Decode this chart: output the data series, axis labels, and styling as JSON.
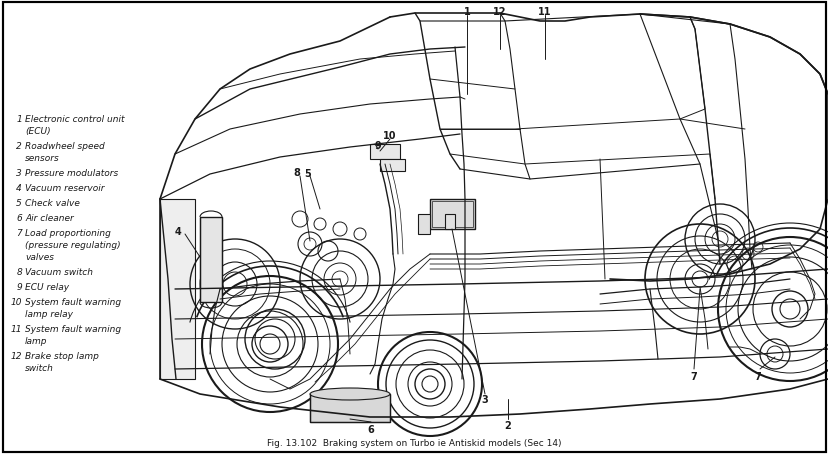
{
  "title": "Fig. 13.102  Braking system on Turbo ie Antiskid models (Sec 14)",
  "background_color": "#ffffff",
  "border_color": "#000000",
  "fig_width": 8.29,
  "fig_height": 4.56,
  "dpi": 100,
  "legend_items": [
    {
      "num": "1",
      "text": "Electronic control unit\n(ECU)"
    },
    {
      "num": "2",
      "text": "Roadwheel speed\nsensors"
    },
    {
      "num": "3",
      "text": "Pressure modulators"
    },
    {
      "num": "4",
      "text": "Vacuum reservoir"
    },
    {
      "num": "5",
      "text": "Check valve"
    },
    {
      "num": "6",
      "text": "Air cleaner"
    },
    {
      "num": "7",
      "text": "Load proportioning\n(pressure regulating)\nvalves"
    },
    {
      "num": "8",
      "text": "Vacuum switch"
    },
    {
      "num": "9",
      "text": "ECU relay"
    },
    {
      "num": "10",
      "text": "System fault warning\nlamp relay"
    },
    {
      "num": "11",
      "text": "System fault warning\nlamp"
    },
    {
      "num": "12",
      "text": "Brake stop lamp\nswitch"
    }
  ],
  "text_color": "#1a1a1a",
  "line_color": "#1a1a1a"
}
